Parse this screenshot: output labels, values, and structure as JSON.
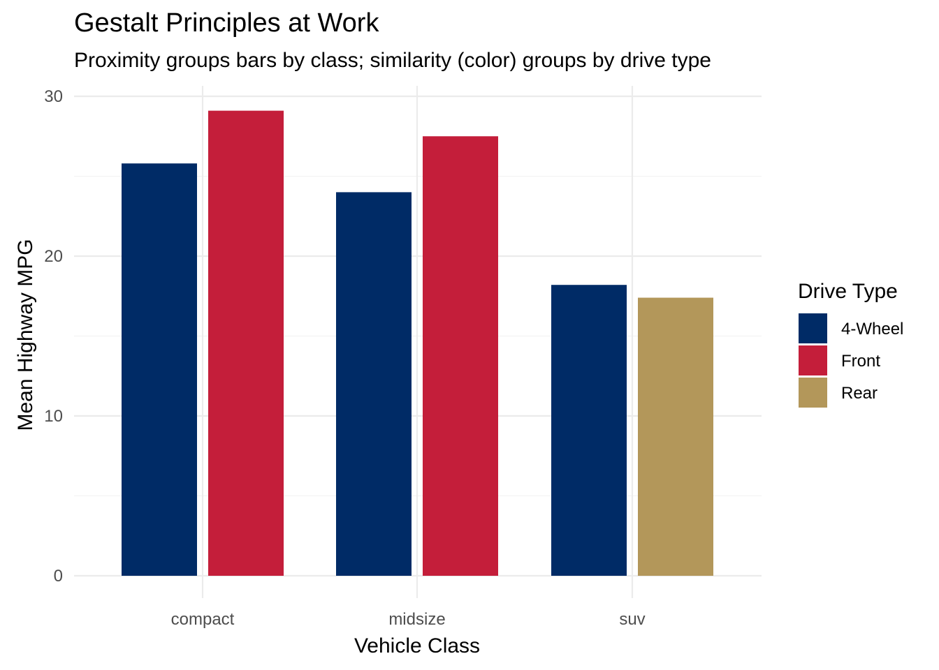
{
  "chart_data": {
    "type": "bar",
    "title": "Gestalt Principles at Work",
    "subtitle": "Proximity groups bars by class; similarity (color) groups by drive type",
    "xlabel": "Vehicle Class",
    "ylabel": "Mean Highway MPG",
    "categories": [
      "compact",
      "midsize",
      "suv"
    ],
    "bars": [
      {
        "category": "compact",
        "drive": "4-Wheel",
        "value": 25.8
      },
      {
        "category": "compact",
        "drive": "Front",
        "value": 29.1
      },
      {
        "category": "midsize",
        "drive": "4-Wheel",
        "value": 24.0
      },
      {
        "category": "midsize",
        "drive": "Front",
        "value": 27.5
      },
      {
        "category": "suv",
        "drive": "4-Wheel",
        "value": 18.2
      },
      {
        "category": "suv",
        "drive": "Rear",
        "value": 17.4
      }
    ],
    "y_ticks": [
      0,
      10,
      20,
      30
    ],
    "ylim": [
      0,
      30.5
    ],
    "grid": true,
    "legend": {
      "title": "Drive Type",
      "placement": "right",
      "items": [
        {
          "name": "4-Wheel",
          "color": "#002B66"
        },
        {
          "name": "Front",
          "color": "#C41E3A"
        },
        {
          "name": "Rear",
          "color": "#B3975A"
        }
      ]
    }
  }
}
